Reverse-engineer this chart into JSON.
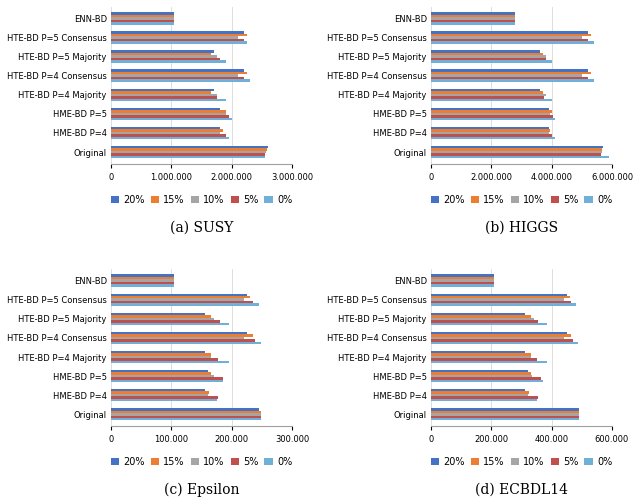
{
  "categories": [
    "ENN-BD",
    "HTE-BD P=5 Consensus",
    "HTE-BD P=5 Majority",
    "HTE-BD P=4 Consensus",
    "HTE-BD P=4 Majority",
    "HME-BD P=5",
    "HME-BD P=4",
    "Original"
  ],
  "series_labels": [
    "20%",
    "15%",
    "10%",
    "5%",
    "0%"
  ],
  "series_colors": [
    "#4472C4",
    "#ED7D31",
    "#A5A5A5",
    "#C0504D",
    "#70B0D8"
  ],
  "datasets": {
    "SUSY": {
      "title": "(a) SUSY",
      "xlim": [
        0,
        3000000
      ],
      "xticks": [
        0,
        1000000,
        2000000,
        3000000
      ],
      "xticklabels": [
        "0",
        "1.000.000",
        "2.000.000",
        "3.000.000"
      ],
      "values": {
        "20%": [
          1050000,
          2200000,
          1700000,
          2200000,
          1700000,
          1800000,
          1800000,
          2600000
        ],
        "15%": [
          1050000,
          2250000,
          1650000,
          2250000,
          1650000,
          1900000,
          1850000,
          2580000
        ],
        "10%": [
          1050000,
          2100000,
          1750000,
          2100000,
          1750000,
          1900000,
          1800000,
          2570000
        ],
        "5%": [
          1050000,
          2200000,
          1800000,
          2200000,
          1750000,
          1950000,
          1900000,
          2560000
        ],
        "0%": [
          1050000,
          2250000,
          1900000,
          2300000,
          1900000,
          2000000,
          1950000,
          2550000
        ]
      }
    },
    "HIGGS": {
      "title": "(b) HIGGS",
      "xlim": [
        0,
        6000000
      ],
      "xticks": [
        0,
        2000000,
        4000000,
        6000000
      ],
      "xticklabels": [
        "0",
        "2.000.000",
        "4.000.000",
        "6.000.000"
      ],
      "values": {
        "20%": [
          2800000,
          5200000,
          3600000,
          5200000,
          3600000,
          3900000,
          3900000,
          5700000
        ],
        "15%": [
          2800000,
          5300000,
          3700000,
          5300000,
          3700000,
          4000000,
          3950000,
          5680000
        ],
        "10%": [
          2800000,
          5000000,
          3800000,
          5000000,
          3800000,
          3950000,
          3900000,
          5660000
        ],
        "5%": [
          2800000,
          5200000,
          3800000,
          5200000,
          3750000,
          4050000,
          4000000,
          5640000
        ],
        "0%": [
          2800000,
          5400000,
          4000000,
          5400000,
          4000000,
          4100000,
          4100000,
          5900000
        ]
      }
    },
    "Epsilon": {
      "title": "(c) Epsilon",
      "xlim": [
        0,
        300000
      ],
      "xticks": [
        0,
        100000,
        200000,
        300000
      ],
      "xticklabels": [
        "0",
        "100.000",
        "200.000",
        "300.000"
      ],
      "values": {
        "20%": [
          105000,
          225000,
          155000,
          225000,
          155000,
          160000,
          155000,
          245000
        ],
        "15%": [
          105000,
          230000,
          165000,
          235000,
          165000,
          165000,
          163000,
          248000
        ],
        "10%": [
          105000,
          220000,
          170000,
          220000,
          165000,
          170000,
          160000,
          248000
        ],
        "5%": [
          105000,
          235000,
          180000,
          238000,
          178000,
          185000,
          178000,
          248000
        ],
        "0%": [
          105000,
          245000,
          195000,
          248000,
          195000,
          185000,
          175000,
          248000
        ]
      }
    },
    "ECBDL14": {
      "title": "(d) ECBDL14",
      "xlim": [
        0,
        600000
      ],
      "xticks": [
        0,
        200000,
        400000,
        600000
      ],
      "xticklabels": [
        "0",
        "200.000",
        "400.000",
        "600.000"
      ],
      "values": {
        "20%": [
          210000,
          450000,
          310000,
          450000,
          310000,
          320000,
          310000,
          490000
        ],
        "15%": [
          210000,
          460000,
          330000,
          465000,
          330000,
          330000,
          325000,
          490000
        ],
        "10%": [
          210000,
          440000,
          340000,
          440000,
          330000,
          335000,
          320000,
          490000
        ],
        "5%": [
          210000,
          465000,
          355000,
          470000,
          350000,
          365000,
          355000,
          490000
        ],
        "0%": [
          210000,
          480000,
          385000,
          488000,
          385000,
          370000,
          350000,
          490000
        ]
      }
    }
  },
  "background_color": "#FFFFFF",
  "bar_height": 0.13,
  "label_fontsize": 7,
  "tick_fontsize": 6,
  "title_fontsize": 10,
  "legend_fontsize": 7
}
